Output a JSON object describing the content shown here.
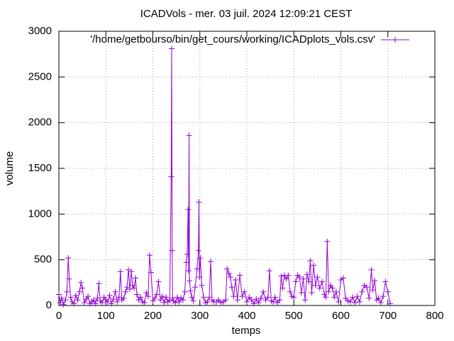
{
  "chart_data": {
    "type": "line",
    "title": "ICADVols - mer. 03 juil. 2024 12:09:21 CEST",
    "x_label": "temps",
    "y_label": "volume",
    "x": [
      0,
      3,
      6,
      10,
      14,
      17,
      20,
      22,
      25,
      28,
      32,
      36,
      40,
      44,
      47,
      50,
      54,
      58,
      62,
      66,
      70,
      74,
      78,
      82,
      85,
      88,
      92,
      96,
      100,
      104,
      108,
      112,
      116,
      120,
      124,
      128,
      131,
      134,
      138,
      142,
      145,
      148,
      151,
      154,
      157,
      160,
      163,
      166,
      170,
      174,
      178,
      182,
      186,
      190,
      193,
      196,
      200,
      204,
      208,
      212,
      216,
      220,
      224,
      228,
      232,
      236,
      239,
      240,
      241,
      242,
      244,
      248,
      252,
      256,
      260,
      264,
      268,
      271,
      273,
      275,
      276,
      277,
      278,
      280,
      283,
      286,
      290,
      294,
      297,
      298,
      299,
      301,
      304,
      308,
      312,
      316,
      320,
      323,
      326,
      330,
      335,
      340,
      345,
      350,
      355,
      358,
      362,
      365,
      368,
      372,
      376,
      380,
      385,
      390,
      395,
      400,
      405,
      410,
      415,
      420,
      425,
      430,
      435,
      440,
      445,
      448,
      452,
      456,
      460,
      465,
      470,
      473,
      476,
      480,
      484,
      488,
      492,
      496,
      500,
      504,
      508,
      512,
      516,
      520,
      524,
      528,
      532,
      535,
      538,
      542,
      546,
      550,
      555,
      560,
      565,
      568,
      571,
      574,
      578,
      582,
      586,
      590,
      595,
      600,
      605,
      610,
      615,
      620,
      625,
      630,
      635,
      640,
      645,
      650,
      655,
      660,
      665,
      668,
      672,
      676,
      680,
      685,
      690,
      695,
      700,
      705
    ],
    "series": [
      {
        "name": "'/home/getbourso/bin/get_cours/working/ICADplots_vols.csv'",
        "color": "#9400d3",
        "values": [
          120,
          30,
          80,
          10,
          60,
          150,
          520,
          290,
          90,
          40,
          20,
          110,
          60,
          150,
          250,
          190,
          30,
          70,
          100,
          20,
          40,
          60,
          20,
          80,
          240,
          50,
          30,
          90,
          60,
          40,
          110,
          20,
          70,
          150,
          40,
          90,
          370,
          60,
          80,
          150,
          200,
          390,
          180,
          370,
          220,
          190,
          300,
          120,
          60,
          90,
          40,
          30,
          140,
          100,
          550,
          360,
          50,
          80,
          120,
          260,
          60,
          100,
          30,
          90,
          40,
          60,
          1410,
          2810,
          600,
          80,
          50,
          30,
          90,
          40,
          80,
          60,
          150,
          470,
          560,
          1050,
          380,
          1860,
          270,
          160,
          90,
          50,
          200,
          400,
          600,
          1130,
          310,
          520,
          220,
          90,
          30,
          40,
          90,
          480,
          60,
          40,
          40,
          60,
          30,
          40,
          60,
          400,
          350,
          310,
          200,
          100,
          280,
          60,
          330,
          100,
          150,
          40,
          90,
          60,
          20,
          70,
          30,
          80,
          150,
          60,
          90,
          380,
          50,
          40,
          90,
          30,
          60,
          320,
          190,
          330,
          290,
          330,
          150,
          100,
          90,
          260,
          330,
          310,
          140,
          290,
          60,
          340,
          260,
          490,
          140,
          440,
          220,
          310,
          190,
          260,
          120,
          90,
          700,
          150,
          220,
          190,
          90,
          150,
          40,
          280,
          300,
          80,
          50,
          40,
          90,
          30,
          100,
          40,
          150,
          220,
          200,
          80,
          390,
          170,
          270,
          60,
          80,
          30,
          100,
          260,
          150,
          20
        ]
      }
    ],
    "xlim": [
      0,
      800
    ],
    "xticks": [
      0,
      100,
      200,
      300,
      400,
      500,
      600,
      700,
      800
    ],
    "ylim": [
      0,
      3000
    ],
    "yticks": [
      0,
      500,
      1000,
      1500,
      2000,
      2500,
      3000
    ],
    "grid": true,
    "legend_position": "top right"
  }
}
